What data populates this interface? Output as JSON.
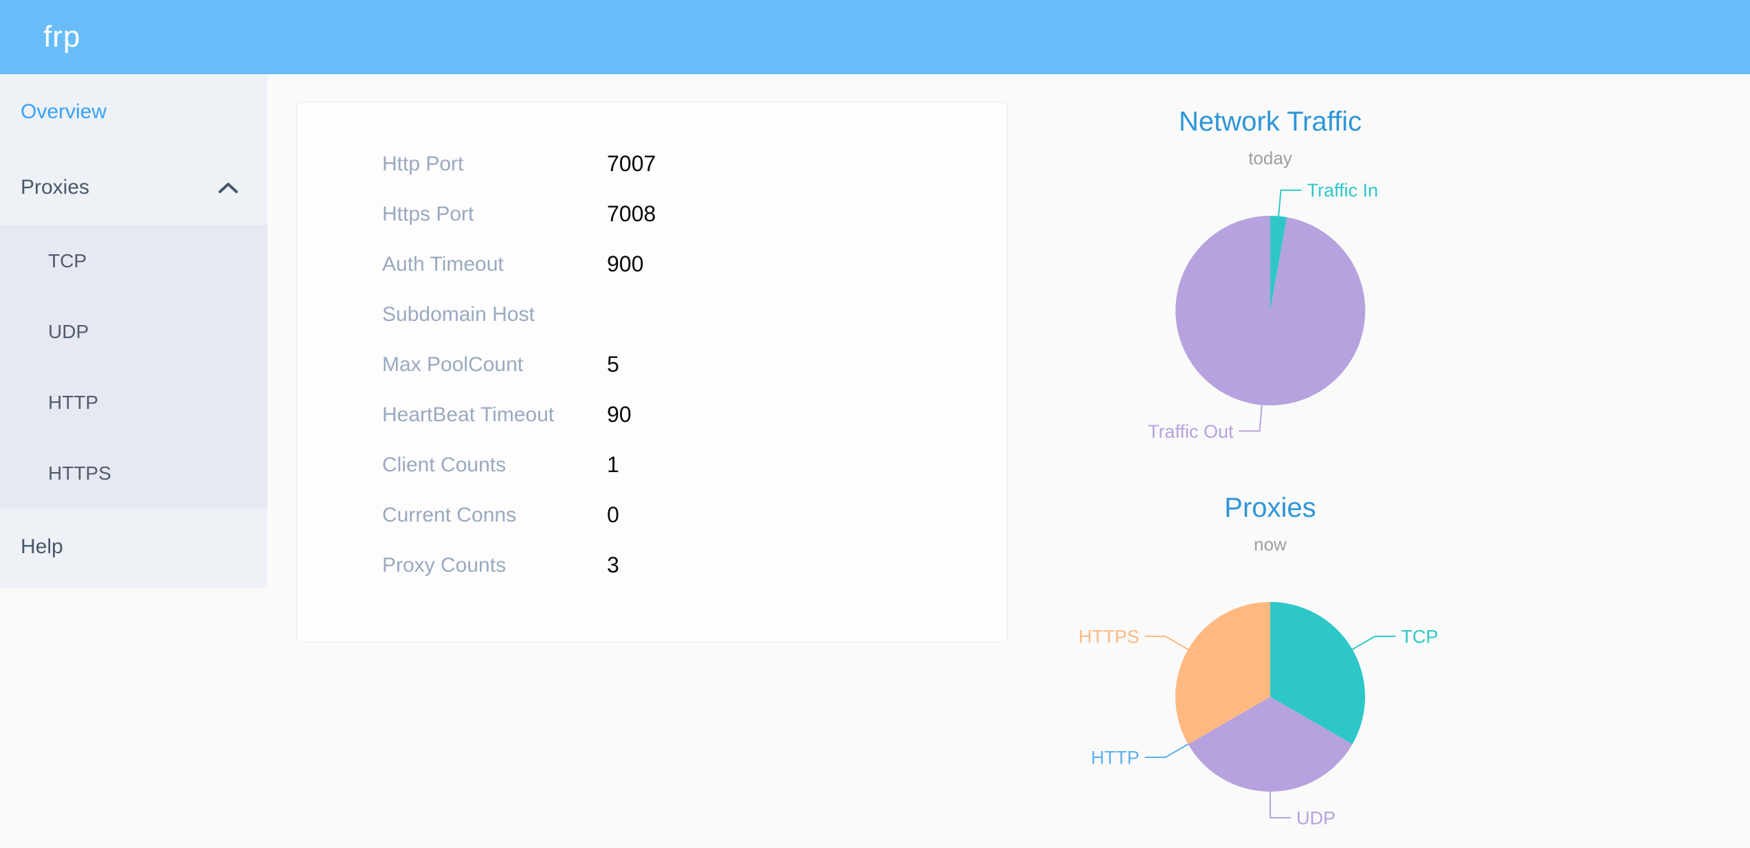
{
  "app": {
    "logo_text": "frp"
  },
  "sidebar": {
    "overview": {
      "label": "Overview"
    },
    "proxies": {
      "label": "Proxies",
      "expanded": true
    },
    "proxy_types": [
      {
        "label": "TCP"
      },
      {
        "label": "UDP"
      },
      {
        "label": "HTTP"
      },
      {
        "label": "HTTPS"
      }
    ],
    "help": {
      "label": "Help"
    }
  },
  "server_info": {
    "rows": [
      {
        "label": "Http Port",
        "value": "7007"
      },
      {
        "label": "Https Port",
        "value": "7008"
      },
      {
        "label": "Auth Timeout",
        "value": "900"
      },
      {
        "label": "Subdomain Host",
        "value": ""
      },
      {
        "label": "Max PoolCount",
        "value": "5"
      },
      {
        "label": "HeartBeat Timeout",
        "value": "90"
      },
      {
        "label": "Client Counts",
        "value": "1"
      },
      {
        "label": "Current Conns",
        "value": "0"
      },
      {
        "label": "Proxy Counts",
        "value": "3"
      }
    ]
  },
  "chart_data": [
    {
      "type": "pie",
      "title": "Network Traffic",
      "subtitle": "today",
      "legend": "none",
      "values_estimated_percent": true,
      "series": [
        {
          "name": "Traffic In",
          "value": 2.8,
          "color": "#2ec7c9"
        },
        {
          "name": "Traffic Out",
          "value": 97.2,
          "color": "#b6a2de"
        }
      ]
    },
    {
      "type": "pie",
      "title": "Proxies",
      "subtitle": "now",
      "legend": "none",
      "series": [
        {
          "name": "TCP",
          "value": 1,
          "color": "#2ec7c9"
        },
        {
          "name": "UDP",
          "value": 1,
          "color": "#b6a2de"
        },
        {
          "name": "HTTP",
          "value": 0,
          "color": "#5ab1ef"
        },
        {
          "name": "HTTPS",
          "value": 1,
          "color": "#ffb980"
        }
      ]
    }
  ],
  "colors": {
    "header_bg": "#68bdf9",
    "sidebar_bg": "#eef1f6",
    "submenu_bg": "#e6e9f2",
    "menu_text": "#48576a",
    "active_menu_text": "#35a2f9",
    "card_label": "#9aa9bf",
    "card_value": "#0a0a0a",
    "chart_title": "#2e95d8",
    "chart_subtitle": "#9e9e9e"
  }
}
